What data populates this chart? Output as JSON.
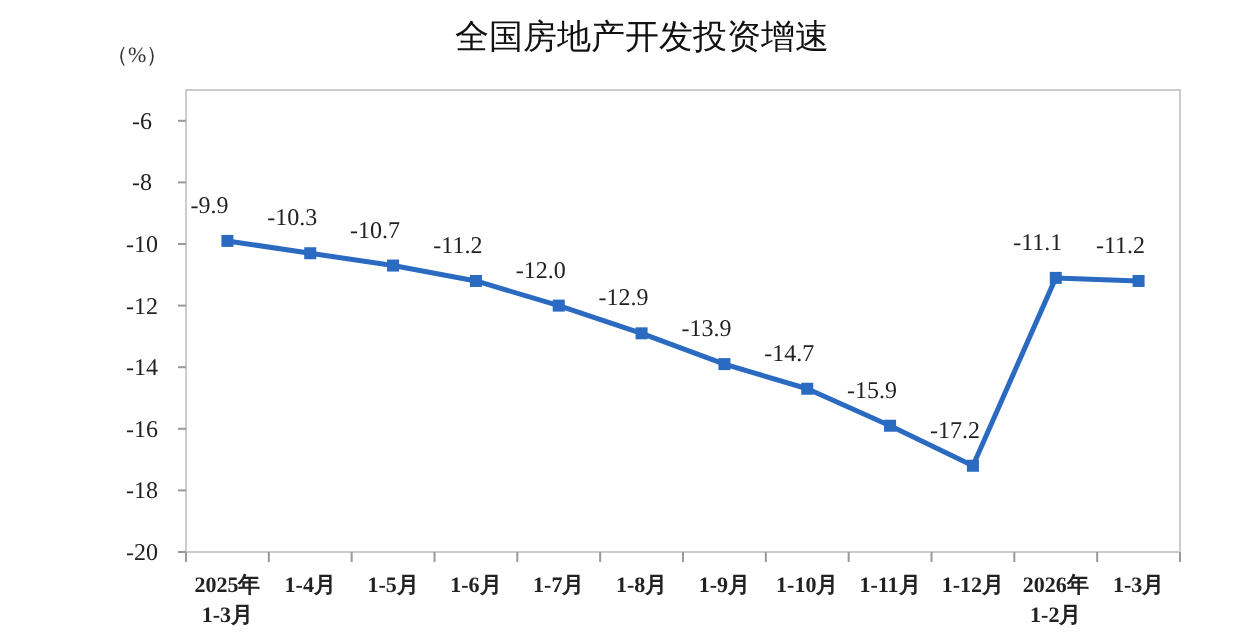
{
  "chart_data": {
    "type": "line",
    "title": "全国房地产开发投资增速",
    "ylabel": "（%）",
    "categories": [
      "2025年\n1-3月",
      "1-4月",
      "1-5月",
      "1-6月",
      "1-7月",
      "1-8月",
      "1-9月",
      "1-10月",
      "1-11月",
      "1-12月",
      "2026年\n1-2月",
      "1-3月"
    ],
    "series": [
      {
        "color": "#2a6ac0",
        "values": [
          -9.9,
          -10.3,
          -10.7,
          -11.2,
          -12.0,
          -12.9,
          -13.9,
          -14.7,
          -15.9,
          -17.2,
          -11.1,
          -11.2
        ]
      }
    ],
    "value_labels": [
      "-9.9",
      "-10.3",
      "-10.7",
      "-11.2",
      "-12.0",
      "-12.9",
      "-13.9",
      "-14.7",
      "-15.9",
      "-17.2",
      "-11.1",
      "-11.2"
    ],
    "ylim": [
      -20,
      -5
    ],
    "yticks": [
      -20,
      -18,
      -16,
      -14,
      -12,
      -10,
      -8,
      -6
    ],
    "grid": false,
    "marker": "square",
    "line_style": "solid"
  }
}
